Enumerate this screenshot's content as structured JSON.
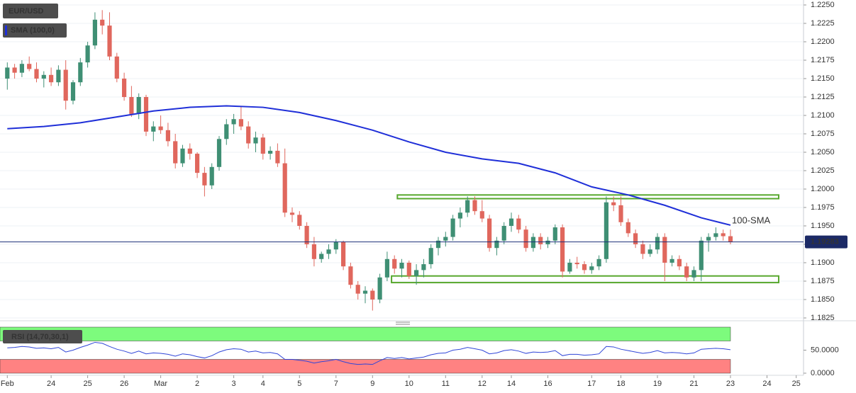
{
  "chart_data": [
    {
      "type": "candlestick",
      "title": "EUR/USD",
      "xlim": [
        -1,
        109
      ],
      "xticks": [
        {
          "value": 0,
          "label": "Feb"
        },
        {
          "value": 6,
          "label": "24"
        },
        {
          "value": 11,
          "label": "25"
        },
        {
          "value": 16,
          "label": "26"
        },
        {
          "value": 21,
          "label": "Mar"
        },
        {
          "value": 26,
          "label": "2"
        },
        {
          "value": 31,
          "label": "3"
        },
        {
          "value": 35,
          "label": "4"
        },
        {
          "value": 40,
          "label": "5"
        },
        {
          "value": 45,
          "label": "7"
        },
        {
          "value": 50,
          "label": "9"
        },
        {
          "value": 55,
          "label": "10"
        },
        {
          "value": 60,
          "label": "11"
        },
        {
          "value": 65,
          "label": "12"
        },
        {
          "value": 69,
          "label": "14"
        },
        {
          "value": 74,
          "label": "16"
        },
        {
          "value": 80,
          "label": "17"
        },
        {
          "value": 84,
          "label": "18"
        },
        {
          "value": 89,
          "label": "19"
        },
        {
          "value": 94,
          "label": "21"
        },
        {
          "value": 99,
          "label": "23"
        },
        {
          "value": 104,
          "label": "24"
        },
        {
          "value": 108,
          "label": "25"
        }
      ],
      "ylim": [
        1.1825,
        1.225
      ],
      "yticks": [
        {
          "value": 1.1825,
          "label": "1.1825"
        },
        {
          "value": 1.185,
          "label": "1.1850"
        },
        {
          "value": 1.1875,
          "label": "1.1875"
        },
        {
          "value": 1.19,
          "label": "1.1900"
        },
        {
          "value": 1.1925,
          "label": "1.1925"
        },
        {
          "value": 1.195,
          "label": "1.1950"
        },
        {
          "value": 1.1975,
          "label": "1.1975"
        },
        {
          "value": 1.2,
          "label": "1.2000"
        },
        {
          "value": 1.2025,
          "label": "1.2025"
        },
        {
          "value": 1.205,
          "label": "1.2050"
        },
        {
          "value": 1.2075,
          "label": "1.2075"
        },
        {
          "value": 1.21,
          "label": "1.2100"
        },
        {
          "value": 1.2125,
          "label": "1.2125"
        },
        {
          "value": 1.215,
          "label": "1.2150"
        },
        {
          "value": 1.2175,
          "label": "1.2175"
        },
        {
          "value": 1.22,
          "label": "1.2200"
        },
        {
          "value": 1.2225,
          "label": "1.2225"
        },
        {
          "value": 1.225,
          "label": "1.2250"
        }
      ],
      "grid": true,
      "colors": {
        "up": "#3f8f74",
        "down": "#e0675d"
      },
      "ohlc": [
        [
          1.215,
          1.2172,
          1.2135,
          1.2165
        ],
        [
          1.2165,
          1.217,
          1.215,
          1.2158
        ],
        [
          1.2158,
          1.2175,
          1.2152,
          1.217
        ],
        [
          1.217,
          1.218,
          1.216,
          1.2163
        ],
        [
          1.2163,
          1.2172,
          1.2145,
          1.215
        ],
        [
          1.215,
          1.216,
          1.2138,
          1.2155
        ],
        [
          1.2155,
          1.2165,
          1.214,
          1.2145
        ],
        [
          1.2145,
          1.2168,
          1.214,
          1.2162
        ],
        [
          1.2162,
          1.2175,
          1.2108,
          1.212
        ],
        [
          1.212,
          1.2148,
          1.2115,
          1.2145
        ],
        [
          1.2145,
          1.2178,
          1.214,
          1.2172
        ],
        [
          1.2172,
          1.22,
          1.2165,
          1.2195
        ],
        [
          1.2195,
          1.224,
          1.219,
          1.223
        ],
        [
          1.223,
          1.2243,
          1.221,
          1.2222
        ],
        [
          1.2222,
          1.224,
          1.2175,
          1.218
        ],
        [
          1.218,
          1.2185,
          1.2145,
          1.215
        ],
        [
          1.215,
          1.2158,
          1.212,
          1.2125
        ],
        [
          1.2125,
          1.214,
          1.2098,
          1.2102
        ],
        [
          1.2102,
          1.213,
          1.2095,
          1.2125
        ],
        [
          1.2125,
          1.2128,
          1.2072,
          1.2078
        ],
        [
          1.2078,
          1.2092,
          1.2065,
          1.2085
        ],
        [
          1.2085,
          1.21,
          1.2075,
          1.208
        ],
        [
          1.208,
          1.209,
          1.2058,
          1.2065
        ],
        [
          1.2065,
          1.2075,
          1.2028,
          1.2035
        ],
        [
          1.2035,
          1.206,
          1.203,
          1.2055
        ],
        [
          1.2055,
          1.2062,
          1.204,
          1.2048
        ],
        [
          1.2048,
          1.205,
          1.2015,
          1.2022
        ],
        [
          1.2022,
          1.203,
          1.199,
          1.2005
        ],
        [
          1.2005,
          1.2035,
          1.2,
          1.203
        ],
        [
          1.203,
          1.2072,
          1.2025,
          1.2068
        ],
        [
          1.2068,
          1.2095,
          1.206,
          1.2088
        ],
        [
          1.2088,
          1.2102,
          1.2075,
          1.2095
        ],
        [
          1.2095,
          1.2112,
          1.208,
          1.2085
        ],
        [
          1.2085,
          1.2092,
          1.2055,
          1.2062
        ],
        [
          1.2062,
          1.2078,
          1.205,
          1.207
        ],
        [
          1.207,
          1.2075,
          1.204,
          1.2048
        ],
        [
          1.2048,
          1.2058,
          1.204,
          1.2052
        ],
        [
          1.2052,
          1.2062,
          1.203,
          1.2035
        ],
        [
          1.2035,
          1.2055,
          1.1962,
          1.1968
        ],
        [
          1.1968,
          1.1975,
          1.1955,
          1.1965
        ],
        [
          1.1965,
          1.197,
          1.1945,
          1.195
        ],
        [
          1.195,
          1.1955,
          1.192,
          1.1925
        ],
        [
          1.1925,
          1.1935,
          1.1895,
          1.1905
        ],
        [
          1.1905,
          1.1915,
          1.19,
          1.1912
        ],
        [
          1.1912,
          1.1925,
          1.1905,
          1.1918
        ],
        [
          1.1918,
          1.1932,
          1.1912,
          1.1928
        ],
        [
          1.1928,
          1.193,
          1.189,
          1.1895
        ],
        [
          1.1895,
          1.19,
          1.1865,
          1.187
        ],
        [
          1.187,
          1.1875,
          1.185,
          1.1858
        ],
        [
          1.1858,
          1.1868,
          1.1845,
          1.1862
        ],
        [
          1.1862,
          1.1865,
          1.1835,
          1.185
        ],
        [
          1.185,
          1.1885,
          1.1845,
          1.188
        ],
        [
          1.188,
          1.1915,
          1.1875,
          1.1905
        ],
        [
          1.1905,
          1.191,
          1.1885,
          1.1892
        ],
        [
          1.1892,
          1.1905,
          1.188,
          1.19
        ],
        [
          1.19,
          1.1903,
          1.1878,
          1.1882
        ],
        [
          1.1882,
          1.1898,
          1.187,
          1.189
        ],
        [
          1.189,
          1.1905,
          1.188,
          1.1898
        ],
        [
          1.1898,
          1.1925,
          1.1892,
          1.192
        ],
        [
          1.192,
          1.1935,
          1.191,
          1.193
        ],
        [
          1.193,
          1.1942,
          1.1922,
          1.1935
        ],
        [
          1.1935,
          1.1965,
          1.193,
          1.196
        ],
        [
          1.196,
          1.1975,
          1.1948,
          1.1968
        ],
        [
          1.1968,
          1.199,
          1.1962,
          1.1985
        ],
        [
          1.1985,
          1.199,
          1.1965,
          1.197
        ],
        [
          1.197,
          1.1985,
          1.1955,
          1.196
        ],
        [
          1.196,
          1.1965,
          1.1915,
          1.192
        ],
        [
          1.192,
          1.1935,
          1.191,
          1.193
        ],
        [
          1.193,
          1.1955,
          1.1925,
          1.195
        ],
        [
          1.195,
          1.1968,
          1.1942,
          1.196
        ],
        [
          1.196,
          1.1965,
          1.194,
          1.1945
        ],
        [
          1.1945,
          1.195,
          1.1915,
          1.192
        ],
        [
          1.192,
          1.194,
          1.1915,
          1.1935
        ],
        [
          1.1935,
          1.194,
          1.1918,
          1.1925
        ],
        [
          1.1925,
          1.1935,
          1.192,
          1.193
        ],
        [
          1.193,
          1.1952,
          1.1925,
          1.1948
        ],
        [
          1.1948,
          1.1952,
          1.188,
          1.1888
        ],
        [
          1.1888,
          1.1905,
          1.1885,
          1.19
        ],
        [
          1.19,
          1.1908,
          1.1892,
          1.1898
        ],
        [
          1.1898,
          1.1902,
          1.1885,
          1.189
        ],
        [
          1.189,
          1.19,
          1.1885,
          1.1895
        ],
        [
          1.1895,
          1.191,
          1.189,
          1.1905
        ],
        [
          1.1905,
          1.199,
          1.19,
          1.1982
        ],
        [
          1.1982,
          1.199,
          1.197,
          1.1978
        ],
        [
          1.1978,
          1.199,
          1.195,
          1.1955
        ],
        [
          1.1955,
          1.196,
          1.1935,
          1.194
        ],
        [
          1.194,
          1.1945,
          1.192,
          1.1925
        ],
        [
          1.1925,
          1.193,
          1.1905,
          1.1912
        ],
        [
          1.1912,
          1.1925,
          1.1908,
          1.1918
        ],
        [
          1.1918,
          1.194,
          1.1912,
          1.1935
        ],
        [
          1.1935,
          1.194,
          1.1875,
          1.19
        ],
        [
          1.19,
          1.191,
          1.1895,
          1.1905
        ],
        [
          1.1905,
          1.191,
          1.189,
          1.1895
        ],
        [
          1.1895,
          1.19,
          1.1875,
          1.188
        ],
        [
          1.188,
          1.1895,
          1.1875,
          1.189
        ],
        [
          1.189,
          1.1935,
          1.1875,
          1.193
        ],
        [
          1.193,
          1.194,
          1.1915,
          1.1935
        ],
        [
          1.1935,
          1.1948,
          1.193,
          1.194
        ],
        [
          1.194,
          1.1945,
          1.193,
          1.1936
        ],
        [
          1.1936,
          1.1945,
          1.1925,
          1.19283
        ]
      ],
      "series": [
        {
          "name": "SMA (100,0)",
          "color": "#1f2fd8",
          "x": [
            0,
            5,
            10,
            15,
            20,
            25,
            30,
            35,
            40,
            45,
            50,
            55,
            60,
            65,
            70,
            75,
            80,
            85,
            90,
            95,
            99
          ],
          "values": [
            1.2082,
            1.2085,
            1.209,
            1.2098,
            1.2106,
            1.2111,
            1.2113,
            1.2111,
            1.2104,
            1.2093,
            1.208,
            1.2064,
            1.205,
            1.2041,
            1.2035,
            1.2022,
            1.2003,
            1.1992,
            1.1978,
            1.1961,
            1.1951
          ]
        }
      ],
      "annotations": [
        "100-SMA"
      ],
      "zones": [
        {
          "x": [
            53.4,
            105.6
          ],
          "y": [
            1.1987,
            1.1992
          ]
        },
        {
          "x": [
            52.6,
            105.6
          ],
          "y": [
            1.1873,
            1.1882
          ]
        }
      ],
      "zone_color": "#58a82e",
      "last_price": 1.19283
    },
    {
      "type": "line",
      "title": "RSI (14,70,30,1)",
      "ylim": [
        0,
        100
      ],
      "yticks": [
        {
          "value": 0,
          "label": "0.0000"
        },
        {
          "value": 50,
          "label": "50.0000"
        }
      ],
      "levels": [
        30,
        70
      ],
      "band_colors": [
        "#ff8282",
        "#7dfb7d"
      ],
      "color": "#2f45d8",
      "values": [
        55,
        56,
        58,
        57,
        54,
        55,
        53,
        56,
        46,
        50,
        56,
        61,
        67,
        65,
        58,
        52,
        48,
        43,
        48,
        42,
        44,
        43,
        41,
        37,
        42,
        40,
        36,
        33,
        38,
        46,
        51,
        53,
        52,
        46,
        48,
        44,
        45,
        42,
        30,
        30,
        28,
        26,
        22,
        25,
        27,
        30,
        25,
        21,
        19,
        20,
        19,
        27,
        34,
        32,
        34,
        31,
        33,
        35,
        40,
        43,
        44,
        50,
        52,
        56,
        53,
        50,
        42,
        44,
        49,
        51,
        48,
        43,
        46,
        45,
        46,
        49,
        38,
        41,
        41,
        39,
        40,
        42,
        58,
        57,
        52,
        49,
        46,
        43,
        45,
        49,
        44,
        45,
        44,
        42,
        44,
        52,
        53,
        54,
        53,
        51
      ]
    }
  ]
}
